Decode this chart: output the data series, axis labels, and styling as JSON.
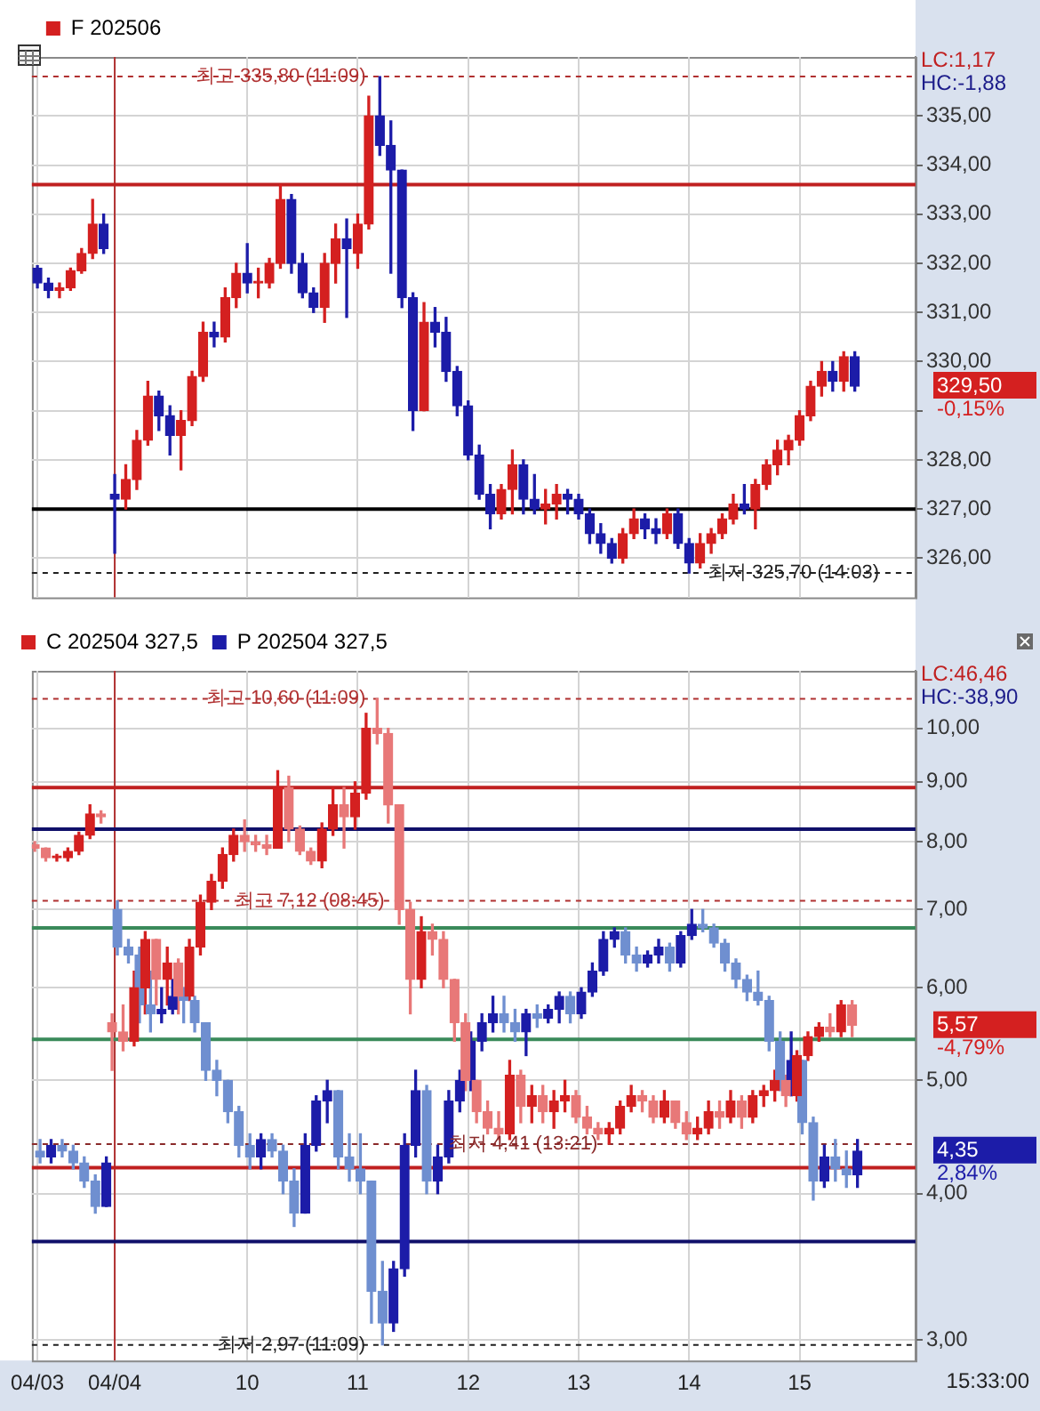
{
  "chart_data": [
    {
      "type": "candlestick",
      "categories": [
        "04/03",
        null,
        null,
        null,
        null,
        null,
        null,
        "04/04",
        null,
        null,
        null,
        null,
        null,
        null,
        null,
        null,
        null,
        null,
        null,
        "10",
        null,
        null,
        null,
        null,
        null,
        null,
        null,
        null,
        null,
        "11",
        null,
        null,
        null,
        null,
        null,
        null,
        null,
        null,
        null,
        "12",
        null,
        null,
        null,
        null,
        null,
        null,
        null,
        null,
        null,
        "13",
        null,
        null,
        null,
        null,
        null,
        null,
        null,
        null,
        null,
        "14",
        null,
        null,
        null,
        null,
        null,
        null,
        null,
        null,
        null,
        "15",
        null,
        null,
        null,
        null,
        null,
        null,
        null,
        null,
        null,
        null
      ],
      "series": [
        {
          "name": "F 202506",
          "color": "#d42020",
          "colors": [
            "#1c1ca8",
            "#1c1ca8",
            "#d42020",
            "#d42020",
            "#d42020",
            "#d42020",
            "#1c1ca8",
            "#1c1ca8",
            "#d42020",
            "#d42020",
            "#d42020",
            "#1c1ca8",
            "#1c1ca8",
            "#d42020",
            "#d42020",
            "#d42020",
            "#1c1ca8",
            "#d42020",
            "#d42020",
            "#1c1ca8",
            "#d42020",
            "#d42020",
            "#d42020",
            "#1c1ca8",
            "#1c1ca8",
            "#1c1ca8",
            "#d42020",
            "#d42020",
            "#1c1ca8",
            "#d42020",
            "#d42020",
            "#1c1ca8",
            "#1c1ca8",
            "#1c1ca8",
            "#1c1ca8",
            "#d42020",
            "#1c1ca8",
            "#1c1ca8",
            "#1c1ca8",
            "#1c1ca8",
            "#1c1ca8",
            "#1c1ca8",
            "#d42020",
            "#d42020",
            "#1c1ca8",
            "#1c1ca8",
            "#d42020",
            "#d42020",
            "#1c1ca8",
            "#1c1ca8",
            "#1c1ca8",
            "#1c1ca8",
            "#1c1ca8",
            "#d42020",
            "#d42020",
            "#1c1ca8",
            "#1c1ca8",
            "#d42020",
            "#1c1ca8",
            "#1c1ca8",
            "#d42020",
            "#d42020",
            "#d42020",
            "#d42020",
            "#1c1ca8",
            "#d42020",
            "#d42020",
            "#d42020",
            "#d42020",
            "#d42020",
            "#d42020",
            "#d42020",
            "#1c1ca8",
            "#d42020",
            "#1c1ca8",
            null,
            null,
            null,
            null,
            null
          ],
          "ohlc": [
            [
              331.9,
              331.95,
              331.5,
              331.6
            ],
            [
              331.6,
              331.7,
              331.3,
              331.45
            ],
            [
              331.45,
              331.6,
              331.3,
              331.5
            ],
            [
              331.5,
              331.9,
              331.45,
              331.85
            ],
            [
              331.85,
              332.3,
              331.8,
              332.2
            ],
            [
              332.2,
              333.3,
              332.1,
              332.8
            ],
            [
              332.8,
              333.0,
              332.2,
              332.3
            ],
            [
              327.3,
              327.7,
              326.1,
              327.2
            ],
            [
              327.2,
              327.9,
              327.0,
              327.6
            ],
            [
              327.6,
              328.6,
              327.4,
              328.4
            ],
            [
              328.4,
              329.6,
              328.3,
              329.3
            ],
            [
              329.3,
              329.4,
              328.6,
              328.9
            ],
            [
              328.9,
              329.1,
              328.1,
              328.5
            ],
            [
              328.5,
              329.0,
              327.8,
              328.8
            ],
            [
              328.8,
              329.8,
              328.7,
              329.7
            ],
            [
              329.7,
              330.8,
              329.6,
              330.6
            ],
            [
              330.6,
              330.8,
              330.3,
              330.5
            ],
            [
              330.5,
              331.5,
              330.4,
              331.3
            ],
            [
              331.3,
              332.0,
              331.1,
              331.8
            ],
            [
              331.8,
              332.4,
              331.4,
              331.6
            ],
            [
              331.6,
              331.9,
              331.3,
              331.6
            ],
            [
              331.6,
              332.1,
              331.5,
              332.0
            ],
            [
              332.0,
              333.6,
              331.9,
              333.3
            ],
            [
              333.3,
              333.4,
              331.8,
              332.0
            ],
            [
              332.0,
              332.2,
              331.3,
              331.4
            ],
            [
              331.4,
              331.5,
              331.0,
              331.1
            ],
            [
              331.1,
              332.2,
              330.8,
              332.0
            ],
            [
              332.0,
              332.8,
              331.6,
              332.5
            ],
            [
              332.5,
              332.9,
              330.9,
              332.3
            ],
            [
              332.2,
              333.0,
              331.9,
              332.8
            ],
            [
              332.8,
              335.4,
              332.7,
              335.0
            ],
            [
              335.0,
              335.8,
              334.2,
              334.4
            ],
            [
              334.4,
              334.9,
              331.8,
              333.9
            ],
            [
              333.9,
              333.9,
              331.1,
              331.3
            ],
            [
              331.3,
              331.4,
              328.6,
              329.0
            ],
            [
              329.0,
              331.2,
              329.0,
              330.8
            ],
            [
              330.8,
              331.1,
              330.3,
              330.6
            ],
            [
              330.6,
              330.9,
              329.6,
              329.8
            ],
            [
              329.8,
              329.9,
              328.9,
              329.1
            ],
            [
              329.1,
              329.2,
              328.0,
              328.1
            ],
            [
              328.1,
              328.3,
              327.2,
              327.3
            ],
            [
              327.3,
              327.5,
              326.6,
              326.9
            ],
            [
              326.9,
              327.5,
              326.8,
              327.4
            ],
            [
              327.4,
              328.2,
              326.9,
              327.9
            ],
            [
              327.9,
              328.0,
              326.9,
              327.2
            ],
            [
              327.2,
              327.7,
              326.9,
              327.0
            ],
            [
              327.0,
              327.4,
              326.7,
              327.1
            ],
            [
              327.1,
              327.5,
              326.8,
              327.3
            ],
            [
              327.3,
              327.4,
              326.9,
              327.2
            ],
            [
              327.2,
              327.3,
              326.8,
              326.9
            ],
            [
              326.9,
              327.0,
              326.3,
              326.5
            ],
            [
              326.5,
              326.7,
              326.1,
              326.3
            ],
            [
              326.3,
              326.4,
              325.9,
              326.0
            ],
            [
              326.0,
              326.6,
              325.9,
              326.5
            ],
            [
              326.5,
              327.0,
              326.4,
              326.8
            ],
            [
              326.8,
              326.9,
              326.4,
              326.6
            ],
            [
              326.6,
              326.8,
              326.3,
              326.5
            ],
            [
              326.5,
              327.0,
              326.4,
              326.9
            ],
            [
              326.9,
              327.0,
              326.2,
              326.3
            ],
            [
              326.3,
              326.4,
              325.7,
              325.9
            ],
            [
              325.9,
              326.5,
              325.8,
              326.3
            ],
            [
              326.3,
              326.6,
              326.1,
              326.5
            ],
            [
              326.5,
              326.9,
              326.4,
              326.8
            ],
            [
              326.8,
              327.3,
              326.7,
              327.1
            ],
            [
              327.1,
              327.5,
              326.9,
              327.0
            ],
            [
              327.0,
              327.6,
              326.6,
              327.5
            ],
            [
              327.5,
              328.0,
              327.4,
              327.9
            ],
            [
              327.9,
              328.4,
              327.7,
              328.2
            ],
            [
              328.2,
              328.5,
              327.9,
              328.4
            ],
            [
              328.4,
              329.0,
              328.3,
              328.9
            ],
            [
              328.9,
              329.6,
              328.8,
              329.5
            ],
            [
              329.5,
              330.0,
              329.3,
              329.8
            ],
            [
              329.8,
              330.0,
              329.4,
              329.6
            ],
            [
              329.6,
              330.2,
              329.4,
              330.1
            ],
            [
              330.1,
              330.2,
              329.4,
              329.5
            ],
            null,
            null,
            null,
            null,
            null
          ]
        }
      ],
      "ylim": [
        325.2,
        336.2
      ],
      "yticks": [
        {
          "value": 326,
          "label": "326,00"
        },
        {
          "value": 327,
          "label": "327,00"
        },
        {
          "value": 328,
          "label": "328,00"
        },
        {
          "value": 329,
          "label": null
        },
        {
          "value": 330,
          "label": "330,00"
        },
        {
          "value": 331,
          "label": "331,00"
        },
        {
          "value": 332,
          "label": "332,00"
        },
        {
          "value": 333,
          "label": "333,00"
        },
        {
          "value": 334,
          "label": "334,00"
        },
        {
          "value": 335,
          "label": "335,00"
        }
      ],
      "tick_labels": "y",
      "grid": true,
      "legend": "top left",
      "ref_lines": [
        {
          "axis": "x",
          "value": "04/04",
          "color": "#b03030"
        },
        {
          "axis": "y",
          "value": 333.6,
          "color": "#c02020"
        },
        {
          "axis": "y",
          "value": 327.0,
          "color": "#000000"
        },
        {
          "axis": "y",
          "value": 335.8,
          "label": "최고 335,80 (11:09)",
          "color": "#b03030",
          "line_style": "dashed"
        },
        {
          "axis": "y",
          "value": 325.7,
          "label": "최저 325,70 (14:03)",
          "color": "#202020",
          "line_style": "dashed"
        }
      ],
      "annotations": [
        "LC:1,17",
        "HC:-1,88",
        "329,50",
        "-0,15%"
      ]
    },
    {
      "type": "candlestick",
      "categories": [
        "04/03",
        null,
        null,
        null,
        null,
        null,
        null,
        "04/04",
        null,
        null,
        null,
        null,
        null,
        null,
        null,
        null,
        null,
        null,
        null,
        "10",
        null,
        null,
        null,
        null,
        null,
        null,
        null,
        null,
        null,
        "11",
        null,
        null,
        null,
        null,
        null,
        null,
        null,
        null,
        null,
        "12",
        null,
        null,
        null,
        null,
        null,
        null,
        null,
        null,
        null,
        "13",
        null,
        null,
        null,
        null,
        null,
        null,
        null,
        null,
        null,
        "14",
        null,
        null,
        null,
        null,
        null,
        null,
        null,
        null,
        null,
        "15",
        null,
        null,
        null,
        null,
        null,
        null,
        null,
        null,
        null,
        null
      ],
      "series": [
        {
          "name": "C 202504 327,5",
          "color": "#d42020",
          "colors": [
            "#e87878",
            "#e87878",
            "#d42020",
            "#d42020",
            "#d42020",
            "#d42020",
            "#e87878",
            "#e87878",
            "#e87878",
            "#d42020",
            "#d42020",
            "#e87878",
            "#d42020",
            "#e87878",
            "#d42020",
            "#d42020",
            "#d42020",
            "#d42020",
            "#d42020",
            "#e87878",
            "#e87878",
            "#e87878",
            "#d42020",
            "#e87878",
            "#e87878",
            "#e87878",
            "#d42020",
            "#d42020",
            "#e87878",
            "#d42020",
            "#d42020",
            "#e87878",
            "#e87878",
            "#e87878",
            "#e87878",
            "#d42020",
            "#e87878",
            "#e87878",
            "#e87878",
            "#e87878",
            "#e87878",
            "#e87878",
            "#e87878",
            "#d42020",
            "#e87878",
            "#d42020",
            "#e87878",
            "#d42020",
            "#d42020",
            "#e87878",
            "#e87878",
            "#e87878",
            "#d42020",
            "#d42020",
            "#d42020",
            "#e87878",
            "#e87878",
            "#d42020",
            "#e87878",
            "#e87878",
            "#d42020",
            "#d42020",
            "#e87878",
            "#d42020",
            "#e87878",
            "#d42020",
            "#d42020",
            "#d42020",
            "#e87878",
            "#d42020",
            "#d42020",
            "#d42020",
            "#e87878",
            "#d42020",
            "#e87878",
            null,
            null,
            null,
            null,
            null
          ],
          "ohlc": [
            [
              7.95,
              8.0,
              7.85,
              7.9
            ],
            [
              7.9,
              7.9,
              7.7,
              7.75
            ],
            [
              7.75,
              7.8,
              7.7,
              7.75
            ],
            [
              7.75,
              7.9,
              7.7,
              7.85
            ],
            [
              7.85,
              8.15,
              7.8,
              8.1
            ],
            [
              8.1,
              8.6,
              8.05,
              8.45
            ],
            [
              8.45,
              8.5,
              8.3,
              8.4
            ],
            [
              5.6,
              5.7,
              5.1,
              5.5
            ],
            [
              5.5,
              5.8,
              5.3,
              5.4
            ],
            [
              5.4,
              6.2,
              5.35,
              6.0
            ],
            [
              6.0,
              6.7,
              5.7,
              6.6
            ],
            [
              6.6,
              6.6,
              5.8,
              6.1
            ],
            [
              6.1,
              6.5,
              5.8,
              6.3
            ],
            [
              6.3,
              6.35,
              5.7,
              5.9
            ],
            [
              5.9,
              6.6,
              5.85,
              6.5
            ],
            [
              6.5,
              7.2,
              6.4,
              7.1
            ],
            [
              7.1,
              7.5,
              7.0,
              7.4
            ],
            [
              7.4,
              7.9,
              7.3,
              7.8
            ],
            [
              7.8,
              8.2,
              7.7,
              8.1
            ],
            [
              8.1,
              8.35,
              7.85,
              8.0
            ],
            [
              8.0,
              8.1,
              7.85,
              7.95
            ],
            [
              7.95,
              8.1,
              7.8,
              7.9
            ],
            [
              7.9,
              9.2,
              7.9,
              8.9
            ],
            [
              8.9,
              9.1,
              8.0,
              8.2
            ],
            [
              8.2,
              8.25,
              7.8,
              7.85
            ],
            [
              7.85,
              7.9,
              7.65,
              7.7
            ],
            [
              7.7,
              8.3,
              7.6,
              8.2
            ],
            [
              8.2,
              8.9,
              8.1,
              8.6
            ],
            [
              8.6,
              8.9,
              7.9,
              8.4
            ],
            [
              8.4,
              9.0,
              8.2,
              8.8
            ],
            [
              8.8,
              10.3,
              8.7,
              10.0
            ],
            [
              10.0,
              10.6,
              9.7,
              9.9
            ],
            [
              9.9,
              10.0,
              8.3,
              8.6
            ],
            [
              8.6,
              8.6,
              6.8,
              7.0
            ],
            [
              7.0,
              7.1,
              5.7,
              6.1
            ],
            [
              6.1,
              6.9,
              6.0,
              6.7
            ],
            [
              6.7,
              6.8,
              6.4,
              6.6
            ],
            [
              6.6,
              6.7,
              6.0,
              6.1
            ],
            [
              6.1,
              6.1,
              5.4,
              5.6
            ],
            [
              5.6,
              5.7,
              4.9,
              5.0
            ],
            [
              5.0,
              5.0,
              4.6,
              4.7
            ],
            [
              4.7,
              4.8,
              4.5,
              4.55
            ],
            [
              4.55,
              4.7,
              4.45,
              4.5
            ],
            [
              4.5,
              5.2,
              4.45,
              5.05
            ],
            [
              5.05,
              5.1,
              4.6,
              4.75
            ],
            [
              4.75,
              4.95,
              4.6,
              4.85
            ],
            [
              4.85,
              4.95,
              4.6,
              4.7
            ],
            [
              4.7,
              4.9,
              4.55,
              4.8
            ],
            [
              4.8,
              5.0,
              4.7,
              4.85
            ],
            [
              4.85,
              4.9,
              4.6,
              4.65
            ],
            [
              4.65,
              4.75,
              4.5,
              4.55
            ],
            [
              4.55,
              4.6,
              4.45,
              4.5
            ],
            [
              4.5,
              4.6,
              4.41,
              4.55
            ],
            [
              4.55,
              4.8,
              4.5,
              4.75
            ],
            [
              4.75,
              4.95,
              4.7,
              4.85
            ],
            [
              4.85,
              4.9,
              4.7,
              4.8
            ],
            [
              4.8,
              4.85,
              4.6,
              4.65
            ],
            [
              4.65,
              4.9,
              4.6,
              4.8
            ],
            [
              4.8,
              4.8,
              4.55,
              4.6
            ],
            [
              4.6,
              4.7,
              4.45,
              4.5
            ],
            [
              4.5,
              4.65,
              4.45,
              4.55
            ],
            [
              4.55,
              4.8,
              4.5,
              4.7
            ],
            [
              4.7,
              4.8,
              4.55,
              4.65
            ],
            [
              4.65,
              4.9,
              4.6,
              4.8
            ],
            [
              4.8,
              4.85,
              4.55,
              4.65
            ],
            [
              4.65,
              4.9,
              4.6,
              4.85
            ],
            [
              4.85,
              4.95,
              4.75,
              4.9
            ],
            [
              4.9,
              5.1,
              4.8,
              5.0
            ],
            [
              5.0,
              5.05,
              4.75,
              4.85
            ],
            [
              4.85,
              5.3,
              4.8,
              5.25
            ],
            [
              5.25,
              5.5,
              5.2,
              5.45
            ],
            [
              5.45,
              5.6,
              5.4,
              5.55
            ],
            [
              5.55,
              5.7,
              5.45,
              5.5
            ],
            [
              5.5,
              5.85,
              5.45,
              5.8
            ],
            [
              5.8,
              5.85,
              5.45,
              5.57
            ],
            null,
            null,
            null,
            null,
            null
          ]
        },
        {
          "name": "P 202504 327,5",
          "color": "#1c1ca8",
          "colors": [
            "#6f8fd0",
            "#1c1ca8",
            "#6f8fd0",
            "#6f8fd0",
            "#6f8fd0",
            "#6f8fd0",
            "#1c1ca8",
            "#6f8fd0",
            "#6f8fd0",
            "#6f8fd0",
            "#6f8fd0",
            "#1c1ca8",
            "#1c1ca8",
            "#6f8fd0",
            "#6f8fd0",
            "#6f8fd0",
            "#6f8fd0",
            "#6f8fd0",
            "#6f8fd0",
            "#6f8fd0",
            "#1c1ca8",
            "#6f8fd0",
            "#6f8fd0",
            "#6f8fd0",
            "#1c1ca8",
            "#1c1ca8",
            "#1c1ca8",
            "#6f8fd0",
            "#6f8fd0",
            "#6f8fd0",
            "#6f8fd0",
            "#6f8fd0",
            "#1c1ca8",
            "#1c1ca8",
            "#1c1ca8",
            "#6f8fd0",
            "#1c1ca8",
            "#1c1ca8",
            "#1c1ca8",
            "#1c1ca8",
            "#1c1ca8",
            "#1c1ca8",
            "#6f8fd0",
            "#6f8fd0",
            "#1c1ca8",
            "#6f8fd0",
            "#1c1ca8",
            "#1c1ca8",
            "#6f8fd0",
            "#1c1ca8",
            "#1c1ca8",
            "#1c1ca8",
            "#1c1ca8",
            "#6f8fd0",
            "#6f8fd0",
            "#1c1ca8",
            "#1c1ca8",
            "#6f8fd0",
            "#1c1ca8",
            "#1c1ca8",
            "#6f8fd0",
            "#6f8fd0",
            "#6f8fd0",
            "#6f8fd0",
            "#6f8fd0",
            "#6f8fd0",
            "#6f8fd0",
            "#6f8fd0",
            "#1c1ca8",
            "#6f8fd0",
            "#6f8fd0",
            "#1c1ca8",
            "#6f8fd0",
            "#6f8fd0",
            "#1c1ca8",
            null,
            null,
            null,
            null,
            null
          ],
          "ohlc": [
            [
              4.35,
              4.45,
              4.25,
              4.3
            ],
            [
              4.3,
              4.45,
              4.25,
              4.4
            ],
            [
              4.4,
              4.45,
              4.3,
              4.35
            ],
            [
              4.35,
              4.4,
              4.2,
              4.25
            ],
            [
              4.25,
              4.3,
              4.05,
              4.1
            ],
            [
              4.1,
              4.15,
              3.85,
              3.9
            ],
            [
              3.9,
              4.3,
              3.9,
              4.25
            ],
            [
              7.0,
              7.12,
              6.4,
              6.5
            ],
            [
              6.5,
              6.6,
              6.3,
              6.4
            ],
            [
              6.4,
              6.5,
              5.6,
              5.8
            ],
            [
              5.8,
              6.2,
              5.5,
              5.7
            ],
            [
              5.7,
              6.0,
              5.6,
              5.75
            ],
            [
              5.75,
              6.1,
              5.7,
              5.9
            ],
            [
              5.9,
              6.0,
              5.6,
              5.85
            ],
            [
              5.85,
              5.9,
              5.5,
              5.6
            ],
            [
              5.6,
              5.6,
              5.0,
              5.1
            ],
            [
              5.1,
              5.2,
              4.85,
              5.0
            ],
            [
              5.0,
              5.0,
              4.6,
              4.7
            ],
            [
              4.7,
              4.75,
              4.3,
              4.4
            ],
            [
              4.4,
              4.5,
              4.2,
              4.3
            ],
            [
              4.3,
              4.5,
              4.2,
              4.45
            ],
            [
              4.45,
              4.5,
              4.3,
              4.35
            ],
            [
              4.35,
              4.4,
              4.0,
              4.1
            ],
            [
              4.1,
              4.2,
              3.75,
              3.85
            ],
            [
              3.85,
              4.5,
              3.85,
              4.4
            ],
            [
              4.4,
              4.85,
              4.35,
              4.8
            ],
            [
              4.8,
              5.0,
              4.6,
              4.9
            ],
            [
              4.9,
              4.9,
              4.2,
              4.3
            ],
            [
              4.3,
              4.5,
              4.1,
              4.2
            ],
            [
              4.2,
              4.5,
              4.0,
              4.1
            ],
            [
              4.1,
              4.1,
              3.1,
              3.3
            ],
            [
              3.3,
              3.5,
              2.97,
              3.1
            ],
            [
              3.1,
              3.5,
              3.05,
              3.45
            ],
            [
              3.45,
              4.5,
              3.4,
              4.4
            ],
            [
              4.4,
              5.1,
              4.3,
              4.9
            ],
            [
              4.9,
              4.95,
              4.0,
              4.1
            ],
            [
              4.1,
              4.4,
              4.0,
              4.3
            ],
            [
              4.3,
              4.9,
              4.25,
              4.8
            ],
            [
              4.8,
              5.1,
              4.7,
              5.0
            ],
            [
              5.0,
              5.5,
              4.9,
              5.4
            ],
            [
              5.4,
              5.7,
              5.3,
              5.6
            ],
            [
              5.6,
              5.9,
              5.5,
              5.7
            ],
            [
              5.7,
              5.9,
              5.5,
              5.6
            ],
            [
              5.6,
              5.75,
              5.4,
              5.5
            ],
            [
              5.5,
              5.75,
              5.25,
              5.7
            ],
            [
              5.7,
              5.8,
              5.55,
              5.65
            ],
            [
              5.65,
              5.8,
              5.6,
              5.75
            ],
            [
              5.75,
              5.95,
              5.6,
              5.9
            ],
            [
              5.9,
              5.95,
              5.6,
              5.7
            ],
            [
              5.7,
              6.0,
              5.65,
              5.95
            ],
            [
              5.95,
              6.3,
              5.9,
              6.2
            ],
            [
              6.2,
              6.7,
              6.15,
              6.6
            ],
            [
              6.6,
              6.75,
              6.5,
              6.7
            ],
            [
              6.7,
              6.75,
              6.3,
              6.4
            ],
            [
              6.4,
              6.5,
              6.2,
              6.3
            ],
            [
              6.3,
              6.45,
              6.25,
              6.4
            ],
            [
              6.4,
              6.6,
              6.3,
              6.5
            ],
            [
              6.5,
              6.55,
              6.2,
              6.3
            ],
            [
              6.3,
              6.7,
              6.25,
              6.65
            ],
            [
              6.65,
              7.0,
              6.6,
              6.8
            ],
            [
              6.8,
              7.0,
              6.7,
              6.75
            ],
            [
              6.75,
              6.8,
              6.5,
              6.55
            ],
            [
              6.55,
              6.6,
              6.2,
              6.3
            ],
            [
              6.3,
              6.35,
              6.0,
              6.1
            ],
            [
              6.1,
              6.15,
              5.85,
              5.95
            ],
            [
              5.95,
              6.2,
              5.8,
              5.85
            ],
            [
              5.85,
              5.9,
              5.3,
              5.4
            ],
            [
              5.4,
              5.5,
              4.9,
              5.0
            ],
            [
              5.0,
              5.5,
              4.85,
              5.2
            ],
            [
              5.2,
              5.2,
              4.5,
              4.6
            ],
            [
              4.6,
              4.65,
              3.95,
              4.1
            ],
            [
              4.1,
              4.4,
              4.05,
              4.3
            ],
            [
              4.3,
              4.45,
              4.1,
              4.2
            ],
            [
              4.2,
              4.35,
              4.05,
              4.15
            ],
            [
              4.15,
              4.45,
              4.05,
              4.35
            ],
            null,
            null,
            null,
            null,
            null
          ]
        }
      ],
      "ylim": [
        2.88,
        11.2
      ],
      "yticks": [
        {
          "value": 3,
          "label": "3,00"
        },
        {
          "value": 4,
          "label": "4,00"
        },
        {
          "value": 5,
          "label": "5,00"
        },
        {
          "value": 6,
          "label": "6,00"
        },
        {
          "value": 7,
          "label": "7,00"
        },
        {
          "value": 8,
          "label": "8,00"
        },
        {
          "value": 9,
          "label": "9,00"
        },
        {
          "value": 10,
          "label": "10,00"
        }
      ],
      "log": "y",
      "grid": true,
      "legend": "top left",
      "xlabel": "15:33:00",
      "ref_lines": [
        {
          "axis": "x",
          "value": "04/04",
          "color": "#b03030"
        },
        {
          "axis": "y",
          "value": 8.9,
          "color": "#c02020"
        },
        {
          "axis": "y",
          "value": 8.2,
          "color": "#10106a"
        },
        {
          "axis": "y",
          "value": 6.75,
          "color": "#3a8a5a"
        },
        {
          "axis": "y",
          "value": 5.42,
          "color": "#3a8a5a"
        },
        {
          "axis": "y",
          "value": 4.21,
          "color": "#c02020"
        },
        {
          "axis": "y",
          "value": 3.64,
          "color": "#10106a"
        },
        {
          "axis": "y",
          "value": 10.6,
          "label": "최고 10,60 (11:09)",
          "color": "#b03030",
          "line_style": "dashed"
        },
        {
          "axis": "y",
          "value": 7.12,
          "label": "최고 7,12 (08:45)",
          "color": "#b03030",
          "line_style": "dashed"
        },
        {
          "axis": "y",
          "value": 4.41,
          "label": "최저 4,41 (13:21)",
          "color": "#8a2a2a",
          "line_style": "dashed"
        },
        {
          "axis": "y",
          "value": 2.97,
          "label": "최저 2,97 (11:09)",
          "color": "#202020",
          "line_style": "dashed"
        }
      ],
      "annotations": [
        "LC:46,46",
        "HC:-38,90",
        "5,57",
        "-4,79%",
        "4,35",
        "2,84%"
      ]
    }
  ]
}
